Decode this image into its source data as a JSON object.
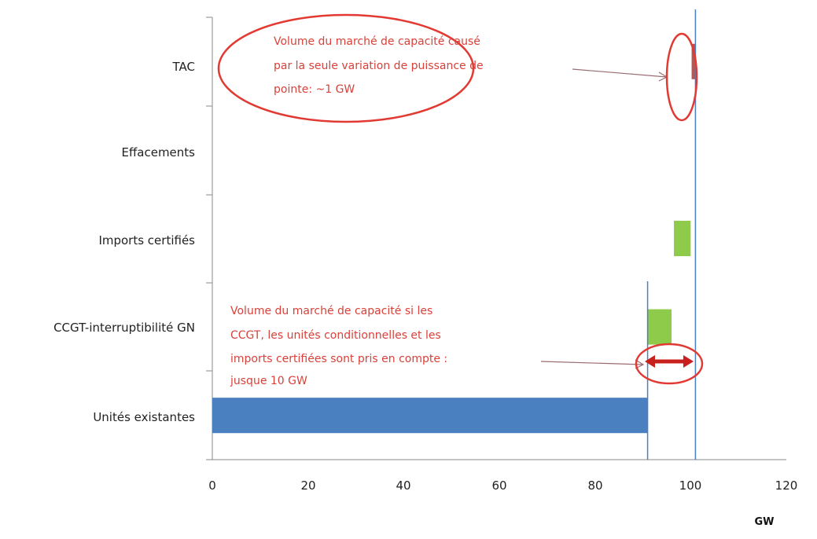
{
  "chart_data": {
    "type": "bar",
    "orientation": "horizontal",
    "unit": "GW",
    "xlim": [
      0,
      120
    ],
    "x_ticks": [
      0,
      20,
      40,
      60,
      80,
      100,
      120
    ],
    "grid": false,
    "categories": [
      "TAC",
      "Effacements",
      "Imports certifiés",
      "CCGT-interruptibilité GN",
      "Unités existantes"
    ],
    "bars": [
      {
        "category": "TAC",
        "start": 100.2,
        "end": 101,
        "color": "#b05a57"
      },
      {
        "category": "Effacements",
        "start": 0,
        "end": 0,
        "color": "#8ecb4a"
      },
      {
        "category": "Imports certifiés",
        "start": 96.5,
        "end": 100,
        "color": "#8ecb4a"
      },
      {
        "category": "CCGT-interruptibilité GN",
        "start": 91,
        "end": 96,
        "color": "#8ecb4a"
      },
      {
        "category": "Unités existantes",
        "start": 0,
        "end": 91,
        "color": "#4a7fc0"
      }
    ],
    "reference_lines": [
      {
        "x": 91,
        "color": "#4a7fc0"
      },
      {
        "x": 101,
        "color": "#4a7fc0"
      }
    ],
    "annotations": [
      {
        "lines": [
          "Volume du marché de capacité causé",
          "par la seule variation de puissance de",
          "pointe: ~1 GW"
        ],
        "color": "#d9413a",
        "points_to": "TAC"
      },
      {
        "lines": [
          "Volume du marché de capacité si les",
          "CCGT, les unités conditionnelles et les",
          "imports certifiées sont pris en compte :",
          "jusque 10 GW"
        ],
        "color": "#d9413a",
        "points_to": "CCGT-interruptibilité GN"
      }
    ]
  }
}
